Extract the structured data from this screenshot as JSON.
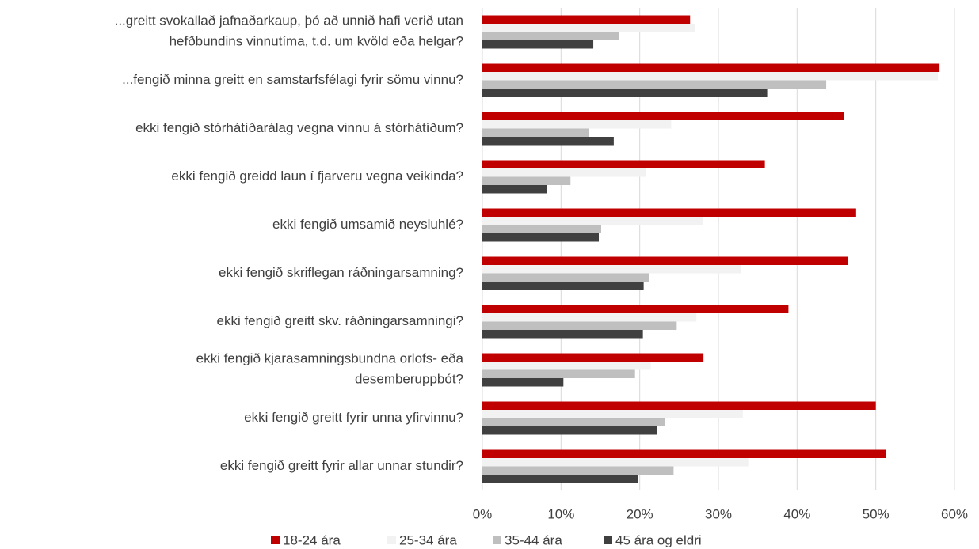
{
  "chart_data": {
    "type": "bar",
    "orientation": "horizontal",
    "categories": [
      "...greitt svokallað jafnaðarkaup, þó að unnið hafi verið utan\nhefðbundins vinnutíma, t.d. um kvöld eða helgar?",
      "...fengið minna greitt en samstarfsfélagi fyrir sömu vinnu?",
      "ekki fengið stórhátíðarálag vegna vinnu á stórhátíðum?",
      "ekki fengið greidd laun í fjarveru vegna veikinda?",
      "ekki fengið umsamið neysluhlé?",
      "ekki fengið skriflegan ráðningarsamning?",
      "ekki fengið greitt skv. ráðningarsamningi?",
      "ekki fengið kjarasamningsbundna orlofs- eða\ndesemberuppbót?",
      "ekki fengið greitt fyrir unna yfirvinnu?",
      "ekki fengið greitt fyrir allar unnar stundir?"
    ],
    "series": [
      {
        "name": "18-24 ára",
        "color": "#c00000",
        "values": [
          26.4,
          58.1,
          46.0,
          35.9,
          47.5,
          46.5,
          38.9,
          28.1,
          50.0,
          51.3
        ]
      },
      {
        "name": "25-34 ára",
        "color": "#f2f2f2",
        "values": [
          27.0,
          57.9,
          24.0,
          20.8,
          28.0,
          32.9,
          27.2,
          21.4,
          33.1,
          33.8
        ]
      },
      {
        "name": "35-44 ára",
        "color": "#bfbfbf",
        "values": [
          17.4,
          43.7,
          13.5,
          11.2,
          15.1,
          21.2,
          24.7,
          19.4,
          23.2,
          24.3
        ]
      },
      {
        "name": "45 ára og eldri",
        "color": "#404040",
        "values": [
          14.1,
          36.2,
          16.7,
          8.2,
          14.8,
          20.5,
          20.4,
          10.3,
          22.2,
          19.8
        ]
      }
    ],
    "xlim": [
      0,
      60
    ],
    "xticks": [
      {
        "value": 0,
        "label": "0%"
      },
      {
        "value": 10,
        "label": "10%"
      },
      {
        "value": 20,
        "label": "20%"
      },
      {
        "value": 30,
        "label": "30%"
      },
      {
        "value": 40,
        "label": "40%"
      },
      {
        "value": 50,
        "label": "50%"
      },
      {
        "value": 60,
        "label": "60%"
      }
    ],
    "grid": true,
    "legend": "bottom"
  }
}
